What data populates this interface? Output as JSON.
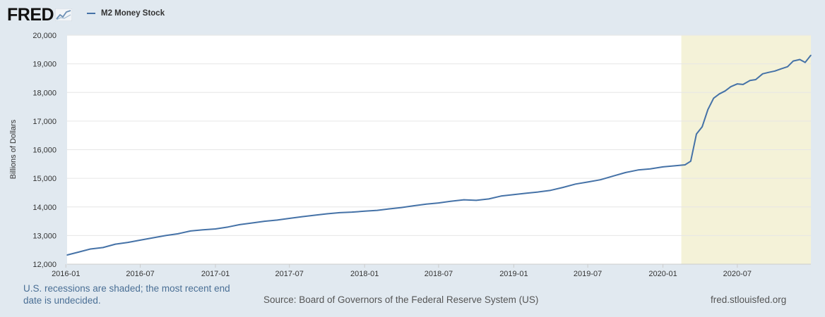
{
  "brand": {
    "logo_text": "FRED",
    "logo_icon": "trend-line-icon"
  },
  "footer": {
    "recession_note": "U.S. recessions are shaded; the most recent end date is undecided.",
    "source": "Source: Board of Governors of the Federal Reserve System (US)",
    "site": "fred.stlouisfed.org"
  },
  "colors": {
    "line": "#4572a7",
    "recession": "#f4f2d8",
    "grid": "#e6e6e6",
    "plot_bg": "#ffffff",
    "page_bg": "#e1e9f0"
  },
  "chart_data": {
    "type": "line",
    "title": "",
    "xlabel": "",
    "ylabel": "Billions of Dollars",
    "ylim": [
      12000,
      20000
    ],
    "xlim": [
      "2016-01-04",
      "2020-12-28"
    ],
    "yticks": [
      12000,
      13000,
      14000,
      15000,
      16000,
      17000,
      18000,
      19000,
      20000
    ],
    "ytick_labels": [
      "12,000",
      "13,000",
      "14,000",
      "15,000",
      "16,000",
      "17,000",
      "18,000",
      "19,000",
      "20,000"
    ],
    "xticks": [
      "2016-01-01",
      "2016-07-01",
      "2017-01-01",
      "2017-07-01",
      "2018-01-01",
      "2018-07-01",
      "2019-01-01",
      "2019-07-01",
      "2020-01-01",
      "2020-07-01"
    ],
    "xtick_labels": [
      "2016-01",
      "2016-07",
      "2017-01",
      "2017-07",
      "2018-01",
      "2018-07",
      "2019-01",
      "2019-07",
      "2020-01",
      "2020-07"
    ],
    "grid": true,
    "legend_position": "top-left",
    "recession_shading": [
      {
        "start": "2020-02-15",
        "end": "2020-12-28"
      }
    ],
    "series": [
      {
        "name": "M2 Money Stock",
        "x": [
          "2016-01-04",
          "2016-02-01",
          "2016-03-01",
          "2016-04-01",
          "2016-05-01",
          "2016-06-01",
          "2016-07-01",
          "2016-08-01",
          "2016-09-01",
          "2016-10-01",
          "2016-11-01",
          "2016-12-01",
          "2017-01-01",
          "2017-02-01",
          "2017-03-01",
          "2017-04-01",
          "2017-05-01",
          "2017-06-01",
          "2017-07-01",
          "2017-08-01",
          "2017-09-01",
          "2017-10-01",
          "2017-11-01",
          "2017-12-01",
          "2018-01-01",
          "2018-02-01",
          "2018-03-01",
          "2018-04-01",
          "2018-05-01",
          "2018-06-01",
          "2018-07-01",
          "2018-08-01",
          "2018-09-01",
          "2018-10-01",
          "2018-11-01",
          "2018-12-01",
          "2019-01-01",
          "2019-02-01",
          "2019-03-01",
          "2019-04-01",
          "2019-05-01",
          "2019-06-01",
          "2019-07-01",
          "2019-08-01",
          "2019-09-01",
          "2019-10-01",
          "2019-11-01",
          "2019-12-01",
          "2020-01-01",
          "2020-02-01",
          "2020-02-24",
          "2020-03-09",
          "2020-03-23",
          "2020-04-06",
          "2020-04-20",
          "2020-05-04",
          "2020-05-18",
          "2020-06-01",
          "2020-06-15",
          "2020-07-01",
          "2020-07-15",
          "2020-08-01",
          "2020-08-15",
          "2020-09-01",
          "2020-09-15",
          "2020-10-01",
          "2020-10-15",
          "2020-11-01",
          "2020-11-15",
          "2020-12-01",
          "2020-12-14",
          "2020-12-28"
        ],
        "y": [
          12320,
          12420,
          12530,
          12580,
          12700,
          12760,
          12840,
          12920,
          13000,
          13060,
          13160,
          13200,
          13230,
          13300,
          13380,
          13440,
          13500,
          13540,
          13600,
          13660,
          13710,
          13760,
          13800,
          13820,
          13850,
          13880,
          13930,
          13980,
          14040,
          14100,
          14140,
          14200,
          14250,
          14230,
          14280,
          14380,
          14430,
          14480,
          14520,
          14580,
          14680,
          14800,
          14870,
          14950,
          15080,
          15200,
          15290,
          15330,
          15400,
          15440,
          15470,
          15600,
          16550,
          16800,
          17400,
          17800,
          17950,
          18050,
          18200,
          18300,
          18280,
          18420,
          18450,
          18650,
          18700,
          18750,
          18820,
          18900,
          19100,
          19150,
          19050,
          19300
        ]
      }
    ]
  }
}
